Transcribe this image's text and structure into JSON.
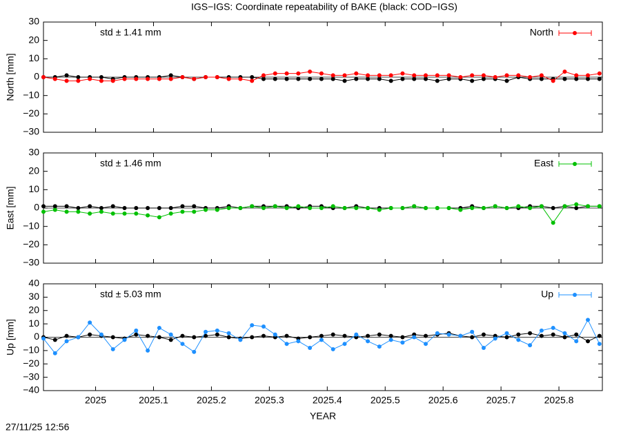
{
  "title": "IGS−IGS: Coordinate repeatability of BAKE (black: COD−IGS)",
  "timestamp": "27/11/25 12:56",
  "chart_data": [
    {
      "type": "line",
      "ylabel": "North [mm]",
      "annotation": "std ± 1.41 mm",
      "legend": "top right",
      "xlim": [
        2024.91,
        2025.875
      ],
      "ylim": [
        -30,
        30
      ],
      "yticks": [
        {
          "value": -30,
          "label": "−30"
        },
        {
          "value": -20,
          "label": "−20"
        },
        {
          "value": -10,
          "label": "−10"
        },
        0,
        10,
        20,
        30
      ],
      "x": [
        2024.91,
        2024.93,
        2024.95,
        2024.97,
        2024.99,
        2025.01,
        2025.03,
        2025.05,
        2025.07,
        2025.09,
        2025.11,
        2025.13,
        2025.15,
        2025.17,
        2025.19,
        2025.21,
        2025.23,
        2025.25,
        2025.27,
        2025.29,
        2025.31,
        2025.33,
        2025.35,
        2025.37,
        2025.39,
        2025.41,
        2025.43,
        2025.45,
        2025.47,
        2025.49,
        2025.51,
        2025.53,
        2025.55,
        2025.57,
        2025.59,
        2025.61,
        2025.63,
        2025.65,
        2025.67,
        2025.69,
        2025.71,
        2025.73,
        2025.75,
        2025.77,
        2025.79,
        2025.81,
        2025.83,
        2025.85,
        2025.87
      ],
      "series": [
        {
          "color": "#000000",
          "values": [
            0,
            0,
            1,
            0,
            0,
            0,
            -1,
            0,
            0,
            0,
            0,
            1,
            0,
            -1,
            0,
            0,
            0,
            0,
            0,
            -1,
            -1,
            -1,
            -1,
            -1,
            -1,
            -1,
            -2,
            -1,
            -1,
            -1,
            -2,
            -1,
            -1,
            -1,
            -2,
            -1,
            -1,
            -2,
            -1,
            -1,
            -2,
            0,
            -1,
            -1,
            -1,
            -1,
            -1,
            -1,
            -1
          ]
        },
        {
          "name": "North",
          "color": "#ff0000",
          "values": [
            0,
            -1,
            -2,
            -2,
            -1,
            -2,
            -2,
            -1,
            -1,
            -1,
            -1,
            -1,
            0,
            -1,
            0,
            0,
            -1,
            -1,
            -2,
            1,
            2,
            2,
            2,
            3,
            2,
            1,
            1,
            2,
            1,
            1,
            1,
            2,
            1,
            1,
            1,
            1,
            0,
            1,
            1,
            0,
            1,
            1,
            0,
            1,
            -2,
            3,
            1,
            1,
            2
          ]
        }
      ]
    },
    {
      "type": "line",
      "ylabel": "East [mm]",
      "annotation": "std ± 1.46 mm",
      "legend": "top right",
      "xlim": [
        2024.91,
        2025.875
      ],
      "ylim": [
        -30,
        30
      ],
      "yticks": [
        {
          "value": -30,
          "label": "−30"
        },
        {
          "value": -20,
          "label": "−20"
        },
        {
          "value": -10,
          "label": "−10"
        },
        0,
        10,
        20,
        30
      ],
      "x": [
        2024.91,
        2024.93,
        2024.95,
        2024.97,
        2024.99,
        2025.01,
        2025.03,
        2025.05,
        2025.07,
        2025.09,
        2025.11,
        2025.13,
        2025.15,
        2025.17,
        2025.19,
        2025.21,
        2025.23,
        2025.25,
        2025.27,
        2025.29,
        2025.31,
        2025.33,
        2025.35,
        2025.37,
        2025.39,
        2025.41,
        2025.43,
        2025.45,
        2025.47,
        2025.49,
        2025.51,
        2025.53,
        2025.55,
        2025.57,
        2025.59,
        2025.61,
        2025.63,
        2025.65,
        2025.67,
        2025.69,
        2025.71,
        2025.73,
        2025.75,
        2025.77,
        2025.79,
        2025.81,
        2025.83,
        2025.85,
        2025.87
      ],
      "series": [
        {
          "color": "#000000",
          "values": [
            1,
            1,
            1,
            0,
            1,
            0,
            1,
            0,
            0,
            0,
            0,
            0,
            1,
            1,
            0,
            0,
            1,
            0,
            1,
            1,
            1,
            1,
            0,
            1,
            1,
            0,
            0,
            1,
            0,
            0,
            0,
            0,
            1,
            0,
            0,
            0,
            0,
            1,
            0,
            1,
            0,
            0,
            1,
            1,
            0,
            1,
            0,
            1,
            1
          ]
        },
        {
          "name": "East",
          "color": "#00c000",
          "values": [
            -2,
            -1,
            -2,
            -2,
            -3,
            -2,
            -3,
            -3,
            -3,
            -4,
            -5,
            -3,
            -2,
            -2,
            -1,
            -1,
            0,
            0,
            1,
            0,
            1,
            0,
            1,
            0,
            0,
            1,
            0,
            0,
            0,
            -1,
            0,
            0,
            1,
            0,
            0,
            0,
            -1,
            0,
            0,
            1,
            0,
            1,
            0,
            1,
            -8,
            1,
            2,
            1,
            1
          ]
        }
      ]
    },
    {
      "type": "line",
      "ylabel": "Up [mm]",
      "annotation": "std ± 5.03 mm",
      "legend": "top right",
      "xlabel": "YEAR",
      "xlim": [
        2024.91,
        2025.875
      ],
      "ylim": [
        -40,
        40
      ],
      "xticks": [
        2025,
        2025.1,
        2025.2,
        2025.3,
        2025.4,
        2025.5,
        2025.6,
        2025.7,
        2025.8
      ],
      "yticks": [
        {
          "value": -40,
          "label": "−40"
        },
        {
          "value": -30,
          "label": "−30"
        },
        {
          "value": -20,
          "label": "−20"
        },
        {
          "value": -10,
          "label": "−10"
        },
        0,
        10,
        20,
        30,
        40
      ],
      "x": [
        2024.91,
        2024.93,
        2024.95,
        2024.97,
        2024.99,
        2025.01,
        2025.03,
        2025.05,
        2025.07,
        2025.09,
        2025.11,
        2025.13,
        2025.15,
        2025.17,
        2025.19,
        2025.21,
        2025.23,
        2025.25,
        2025.27,
        2025.29,
        2025.31,
        2025.33,
        2025.35,
        2025.37,
        2025.39,
        2025.41,
        2025.43,
        2025.45,
        2025.47,
        2025.49,
        2025.51,
        2025.53,
        2025.55,
        2025.57,
        2025.59,
        2025.61,
        2025.63,
        2025.65,
        2025.67,
        2025.69,
        2025.71,
        2025.73,
        2025.75,
        2025.77,
        2025.79,
        2025.81,
        2025.83,
        2025.85,
        2025.87
      ],
      "series": [
        {
          "color": "#000000",
          "values": [
            0,
            -2,
            1,
            0,
            2,
            1,
            0,
            -1,
            2,
            1,
            0,
            -2,
            1,
            0,
            1,
            2,
            0,
            -1,
            0,
            1,
            0,
            1,
            -1,
            0,
            1,
            2,
            1,
            0,
            1,
            2,
            1,
            0,
            2,
            1,
            2,
            3,
            1,
            0,
            2,
            1,
            0,
            2,
            3,
            1,
            2,
            0,
            2,
            -3,
            1
          ]
        },
        {
          "name": "Up",
          "color": "#1e90ff",
          "values": [
            -1,
            -12,
            -3,
            0,
            11,
            2,
            -9,
            -2,
            5,
            -10,
            7,
            2,
            -5,
            -11,
            4,
            5,
            3,
            -2,
            9,
            8,
            2,
            -5,
            -3,
            -8,
            -2,
            -9,
            -5,
            2,
            -3,
            -7,
            -2,
            -4,
            0,
            -5,
            3,
            2,
            1,
            4,
            -8,
            -1,
            3,
            -2,
            -6,
            5,
            7,
            3,
            -3,
            13,
            -5
          ]
        }
      ]
    }
  ]
}
